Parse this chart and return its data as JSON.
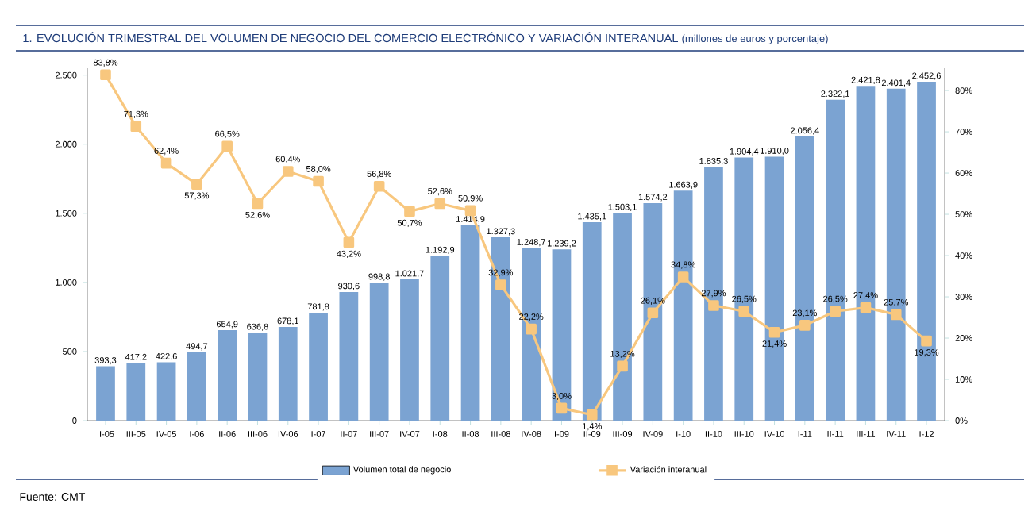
{
  "chart_data": {
    "type": "bar",
    "title": "1. EVOLUCIÓN TRIMESTRAL DEL VOLUMEN DE NEGOCIO DEL COMERCIO ELECTRÓNICO Y VARIACIÓN INTERANUAL",
    "subtitle": "(millones de euros y porcentaje)",
    "categories": [
      "II-05",
      "III-05",
      "IV-05",
      "I-06",
      "II-06",
      "III-06",
      "IV-06",
      "I-07",
      "II-07",
      "III-07",
      "IV-07",
      "I-08",
      "II-08",
      "III-08",
      "IV-08",
      "I-09",
      "II-09",
      "III-09",
      "IV-09",
      "I-10",
      "II-10",
      "III-10",
      "IV-10",
      "I-11",
      "II-11",
      "III-11",
      "IV-11",
      "I-12"
    ],
    "series": [
      {
        "name": "Volumen total de negocio",
        "color": "#7ba3d2",
        "values": [
          393.3,
          417.2,
          422.6,
          494.7,
          654.9,
          636.8,
          678.1,
          781.8,
          930.6,
          998.8,
          1021.7,
          1192.9,
          1414.9,
          1327.3,
          1248.7,
          1239.2,
          1435.1,
          1503.1,
          1574.2,
          1663.9,
          1835.3,
          1904.4,
          1910.0,
          2056.4,
          2322.1,
          2421.8,
          2401.4,
          2452.6
        ],
        "value_labels": [
          "393,3",
          "417,2",
          "422,6",
          "494,7",
          "654,9",
          "636,8",
          "678,1",
          "781,8",
          "930,6",
          "998,8",
          "1.021,7",
          "1.192,9",
          "1.414,9",
          "1.327,3",
          "1.248,7",
          "1.239,2",
          "1.435,1",
          "1.503,1",
          "1.574,2",
          "1.663,9",
          "1.835,3",
          "1.904,4",
          "1.910,0",
          "2.056,4",
          "2.322,1",
          "2.421,8",
          "2.401,4",
          "2.452,6"
        ]
      },
      {
        "name": "Variación interanual",
        "type": "line",
        "axis": "y2",
        "color": "#f8c77e",
        "values": [
          83.8,
          71.3,
          62.4,
          57.3,
          66.5,
          52.6,
          60.4,
          58.0,
          43.2,
          56.8,
          50.7,
          52.6,
          50.9,
          32.9,
          22.2,
          3.0,
          1.4,
          13.2,
          26.1,
          34.8,
          27.9,
          26.5,
          21.4,
          23.1,
          26.5,
          27.4,
          25.7,
          19.3
        ],
        "value_labels": [
          "83,8%",
          "71,3%",
          "62,4%",
          "57,3%",
          "66,5%",
          "52,6%",
          "60,4%",
          "58,0%",
          "43,2%",
          "56,8%",
          "50,7%",
          "52,6%",
          "50,9%",
          "32,9%",
          "22,2%",
          "3,0%",
          "1,4%",
          "13,2%",
          "26,1%",
          "34,8%",
          "27,9%",
          "26,5%",
          "21,4%",
          "23,1%",
          "26,5%",
          "27,4%",
          "25,7%",
          "19,3%"
        ]
      }
    ],
    "ylim": [
      0,
      2550
    ],
    "yticks": [
      0,
      500,
      {
        "value": 1000,
        "label": "1.000"
      },
      {
        "value": 1500,
        "label": "1.500"
      },
      {
        "value": 2000,
        "label": "2.000"
      },
      {
        "value": 2500,
        "label": "2.500"
      }
    ],
    "y2lim": [
      0,
      85.4
    ],
    "y2ticks": [
      {
        "value": 0,
        "label": "0%"
      },
      {
        "value": 10,
        "label": "10%"
      },
      {
        "value": 20,
        "label": "20%"
      },
      {
        "value": 30,
        "label": "30%"
      },
      {
        "value": 40,
        "label": "40%"
      },
      {
        "value": 50,
        "label": "50%"
      },
      {
        "value": 60,
        "label": "60%"
      },
      {
        "value": 70,
        "label": "70%"
      },
      {
        "value": 80,
        "label": "80%"
      }
    ],
    "legend": "bottom",
    "marker": "square",
    "line_style": "solid",
    "annotations": [
      "Fuente: CMT"
    ]
  }
}
